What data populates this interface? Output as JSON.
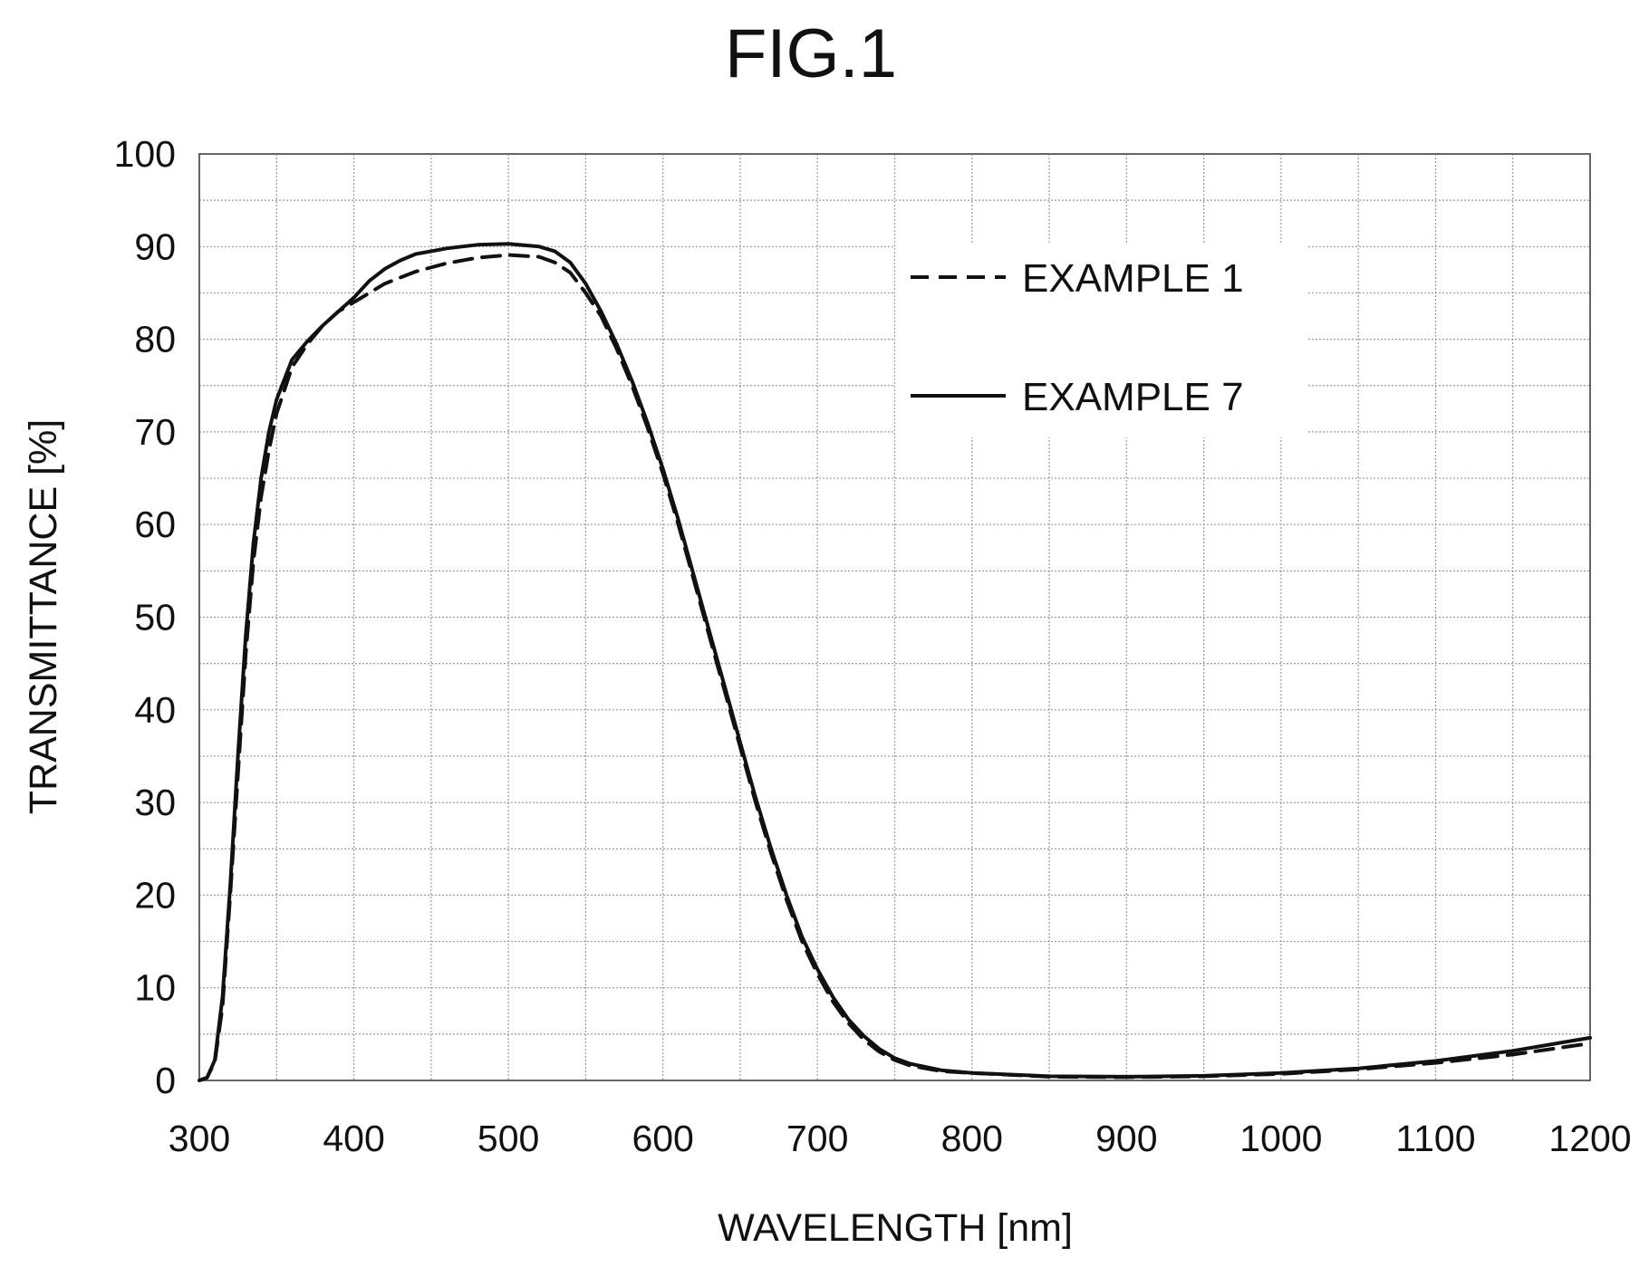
{
  "figure": {
    "title": "FIG.1"
  },
  "chart_data": {
    "type": "line",
    "title": "FIG.1",
    "xlabel": "WAVELENGTH [nm]",
    "ylabel": "TRANSMITTANCE [%]",
    "xlim": [
      300,
      1200
    ],
    "ylim": [
      0,
      100
    ],
    "xticks": [
      300,
      400,
      500,
      600,
      700,
      800,
      900,
      1000,
      1100,
      1200
    ],
    "yticks": [
      0,
      10,
      20,
      30,
      40,
      50,
      60,
      70,
      80,
      90,
      100
    ],
    "x_minor_step": 50,
    "y_minor_step": 5,
    "grid": true,
    "legend_position": "top-right",
    "series": [
      {
        "name": "EXAMPLE 1",
        "style": "dashed",
        "color": "#111111",
        "points": [
          [
            300,
            0
          ],
          [
            305,
            0.3
          ],
          [
            310,
            2
          ],
          [
            315,
            8
          ],
          [
            320,
            20
          ],
          [
            325,
            33
          ],
          [
            330,
            46
          ],
          [
            335,
            56
          ],
          [
            340,
            63
          ],
          [
            345,
            68
          ],
          [
            350,
            72
          ],
          [
            360,
            77
          ],
          [
            370,
            79.5
          ],
          [
            380,
            81.5
          ],
          [
            390,
            83
          ],
          [
            400,
            84
          ],
          [
            420,
            86
          ],
          [
            440,
            87.3
          ],
          [
            460,
            88.2
          ],
          [
            480,
            88.8
          ],
          [
            500,
            89.1
          ],
          [
            520,
            88.9
          ],
          [
            530,
            88.3
          ],
          [
            540,
            87.2
          ],
          [
            550,
            85
          ],
          [
            560,
            82.5
          ],
          [
            570,
            79
          ],
          [
            580,
            75
          ],
          [
            590,
            70.5
          ],
          [
            600,
            65.5
          ],
          [
            610,
            60
          ],
          [
            620,
            54
          ],
          [
            630,
            48
          ],
          [
            640,
            42
          ],
          [
            650,
            36
          ],
          [
            660,
            30
          ],
          [
            670,
            24.5
          ],
          [
            680,
            19.5
          ],
          [
            690,
            15
          ],
          [
            700,
            11.5
          ],
          [
            710,
            8.5
          ],
          [
            720,
            6.2
          ],
          [
            730,
            4.4
          ],
          [
            740,
            3.1
          ],
          [
            750,
            2.2
          ],
          [
            760,
            1.6
          ],
          [
            780,
            1.0
          ],
          [
            800,
            0.8
          ],
          [
            850,
            0.4
          ],
          [
            900,
            0.35
          ],
          [
            950,
            0.45
          ],
          [
            1000,
            0.7
          ],
          [
            1050,
            1.2
          ],
          [
            1100,
            1.9
          ],
          [
            1150,
            2.8
          ],
          [
            1200,
            4.0
          ]
        ]
      },
      {
        "name": "EXAMPLE 7",
        "style": "solid",
        "color": "#111111",
        "points": [
          [
            300,
            0
          ],
          [
            305,
            0.3
          ],
          [
            310,
            2.2
          ],
          [
            315,
            9
          ],
          [
            320,
            21
          ],
          [
            325,
            35
          ],
          [
            330,
            48
          ],
          [
            335,
            58
          ],
          [
            340,
            65
          ],
          [
            345,
            70
          ],
          [
            350,
            73.5
          ],
          [
            360,
            77.8
          ],
          [
            370,
            79.8
          ],
          [
            380,
            81.5
          ],
          [
            390,
            83
          ],
          [
            400,
            84.5
          ],
          [
            410,
            86.3
          ],
          [
            420,
            87.6
          ],
          [
            430,
            88.5
          ],
          [
            440,
            89.2
          ],
          [
            460,
            89.8
          ],
          [
            480,
            90.2
          ],
          [
            500,
            90.3
          ],
          [
            520,
            90
          ],
          [
            530,
            89.5
          ],
          [
            540,
            88.3
          ],
          [
            550,
            86
          ],
          [
            560,
            83
          ],
          [
            570,
            79.5
          ],
          [
            580,
            75.5
          ],
          [
            590,
            71
          ],
          [
            600,
            66
          ],
          [
            610,
            60.5
          ],
          [
            620,
            54.5
          ],
          [
            630,
            48.5
          ],
          [
            640,
            42.5
          ],
          [
            650,
            36.5
          ],
          [
            660,
            30.5
          ],
          [
            670,
            25
          ],
          [
            680,
            20
          ],
          [
            690,
            15.5
          ],
          [
            700,
            12
          ],
          [
            710,
            9
          ],
          [
            720,
            6.6
          ],
          [
            730,
            4.8
          ],
          [
            740,
            3.4
          ],
          [
            750,
            2.4
          ],
          [
            760,
            1.8
          ],
          [
            780,
            1.1
          ],
          [
            800,
            0.8
          ],
          [
            850,
            0.45
          ],
          [
            900,
            0.4
          ],
          [
            950,
            0.5
          ],
          [
            1000,
            0.8
          ],
          [
            1050,
            1.3
          ],
          [
            1100,
            2.1
          ],
          [
            1150,
            3.2
          ],
          [
            1200,
            4.6
          ]
        ]
      }
    ]
  }
}
